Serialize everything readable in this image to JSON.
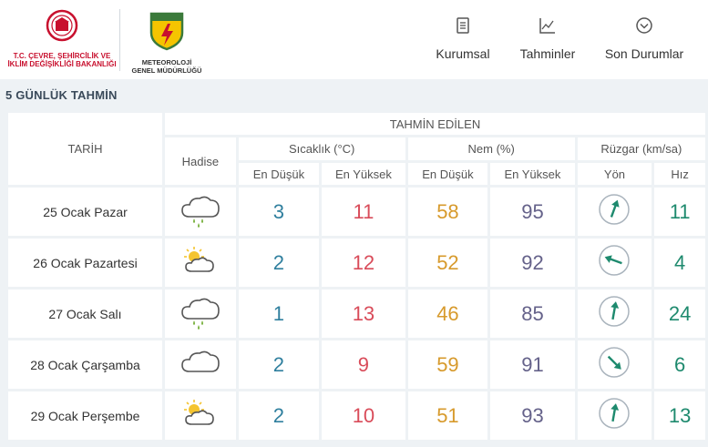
{
  "header": {
    "ministry_line1": "T.C. ÇEVRE, ŞEHİRCİLİK VE",
    "ministry_line2": "İKLİM DEĞİŞİKLİĞİ BAKANLIĞI",
    "met_logo_text": "METEOROLOJİ",
    "met_line1": "METEOROLOJİ",
    "met_line2": "GENEL MÜDÜRLÜĞÜ",
    "nav": [
      {
        "label": "Kurumsal",
        "icon": "document-icon"
      },
      {
        "label": "Tahminler",
        "icon": "chart-icon"
      },
      {
        "label": "Son Durumlar",
        "icon": "chevron-circle-icon"
      }
    ]
  },
  "title": "5 GÜNLÜK TAHMİN",
  "table": {
    "date_header": "TARİH",
    "forecast_header": "TAHMİN EDİLEN",
    "hadise_header": "Hadise",
    "temp_header": "Sıcaklık (°C)",
    "hum_header": "Nem (%)",
    "wind_header": "Rüzgar (km/sa)",
    "min_label": "En Düşük",
    "max_label": "En Yüksek",
    "dir_label": "Yön",
    "speed_label": "Hız",
    "rows": [
      {
        "date": "25 Ocak Pazar",
        "weather": "rain-cloud-icon",
        "tmin": "3",
        "tmax": "11",
        "hmin": "58",
        "hmax": "95",
        "wind_dir_deg": 20,
        "speed": "11"
      },
      {
        "date": "26 Ocak Pazartesi",
        "weather": "partly-sunny-icon",
        "tmin": "2",
        "tmax": "12",
        "hmin": "52",
        "hmax": "92",
        "wind_dir_deg": 290,
        "speed": "4"
      },
      {
        "date": "27 Ocak Salı",
        "weather": "rain-cloud-icon",
        "tmin": "1",
        "tmax": "13",
        "hmin": "46",
        "hmax": "85",
        "wind_dir_deg": 10,
        "speed": "24"
      },
      {
        "date": "28 Ocak Çarşamba",
        "weather": "cloud-icon",
        "tmin": "2",
        "tmax": "9",
        "hmin": "59",
        "hmax": "91",
        "wind_dir_deg": 135,
        "speed": "6"
      },
      {
        "date": "29 Ocak Perşembe",
        "weather": "partly-sunny-icon",
        "tmin": "2",
        "tmax": "10",
        "hmin": "51",
        "hmax": "93",
        "wind_dir_deg": 10,
        "speed": "13"
      }
    ]
  },
  "colors": {
    "temp_min": "#2f7f9e",
    "temp_max": "#d94c5a",
    "hum_min": "#d79a2c",
    "hum_max": "#65628a",
    "wind": "#1e8a6e"
  }
}
